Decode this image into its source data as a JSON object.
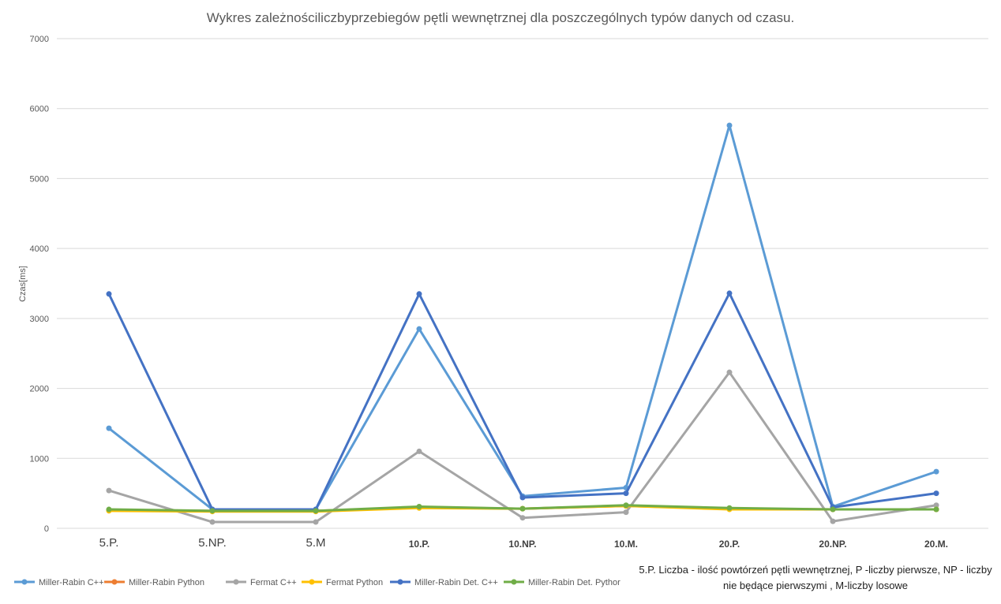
{
  "chart_data": {
    "type": "line",
    "title": "Wykres zależnościliczbyprzebiegów pętli wewnętrznej dla poszczególnych typów danych od czasu.",
    "ylabel": "Czas[ms]",
    "xlabel": "",
    "ylim": [
      0,
      7000
    ],
    "yticks": [
      0,
      1000,
      2000,
      3000,
      4000,
      5000,
      6000,
      7000
    ],
    "grid": true,
    "legend_position": "bottom-left",
    "categories": [
      "5.P.",
      "5.NP.",
      "5.M",
      "10.P.",
      "10.NP.",
      "10.M.",
      "20.P.",
      "20.NP.",
      "20.M."
    ],
    "series": [
      {
        "name": "Miller-Rabin C++",
        "color": "#5B9BD5",
        "values": [
          1430,
          270,
          270,
          2850,
          460,
          580,
          5760,
          310,
          810
        ]
      },
      {
        "name": "Miller-Rabin Python",
        "color": "#ED7D31",
        "values": [
          260,
          250,
          250,
          300,
          280,
          320,
          280,
          270,
          270
        ]
      },
      {
        "name": "Fermat C++",
        "color": "#A5A5A5",
        "values": [
          540,
          90,
          90,
          1100,
          150,
          230,
          2230,
          100,
          330
        ]
      },
      {
        "name": "Fermat Python",
        "color": "#FFC000",
        "values": [
          250,
          240,
          240,
          290,
          280,
          320,
          270,
          270,
          270
        ]
      },
      {
        "name": "Miller-Rabin Det. C++",
        "color": "#4472C4",
        "values": [
          3350,
          270,
          270,
          3350,
          440,
          500,
          3360,
          300,
          500
        ]
      },
      {
        "name": "Miller-Rabin Det. Pythor",
        "color": "#70AD47",
        "values": [
          270,
          250,
          250,
          310,
          280,
          330,
          290,
          270,
          270
        ]
      }
    ],
    "note": "5.P. Liczba - ilość powtórzeń pętli wewnętrznej, P -liczby pierwsze, NP - liczby nie będące pierwszymi , M-liczby losowe"
  }
}
